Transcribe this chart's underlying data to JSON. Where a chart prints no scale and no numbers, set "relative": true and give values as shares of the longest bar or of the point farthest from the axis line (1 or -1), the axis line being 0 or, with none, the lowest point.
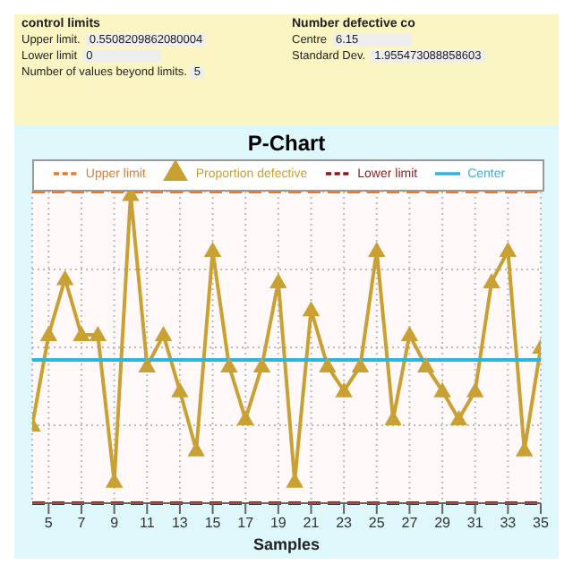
{
  "chart_data": {
    "type": "line",
    "title": "P-Chart",
    "xlabel": "Samples",
    "relative": true,
    "x": [
      4,
      5,
      6,
      7,
      8,
      9,
      10,
      11,
      12,
      13,
      14,
      15,
      16,
      17,
      18,
      19,
      20,
      21,
      22,
      23,
      24,
      25,
      26,
      27,
      28,
      29,
      30,
      31,
      32,
      33,
      34,
      35
    ],
    "xlim": [
      4,
      35
    ],
    "xticks": [
      5,
      7,
      9,
      11,
      13,
      15,
      17,
      19,
      21,
      23,
      25,
      27,
      29,
      31,
      33,
      35
    ],
    "grid": true,
    "legend": "top",
    "series": [
      {
        "name": "Upper limit",
        "color": "#e07b30",
        "values": [
          1,
          1,
          1,
          1,
          1,
          1,
          1,
          1,
          1,
          1,
          1,
          1,
          1,
          1,
          1,
          1,
          1,
          1,
          1,
          1,
          1,
          1,
          1,
          1,
          1,
          1,
          1,
          1,
          1,
          1,
          1,
          1
        ],
        "line_style": "dashed",
        "marker": "none"
      },
      {
        "name": "Proportion defective",
        "color": "#c9a032",
        "values": [
          0.25,
          0.54,
          0.72,
          0.54,
          0.54,
          0.07,
          0.99,
          0.44,
          0.54,
          0.36,
          0.17,
          0.81,
          0.44,
          0.27,
          0.44,
          0.71,
          0.07,
          0.62,
          0.44,
          0.36,
          0.44,
          0.81,
          0.27,
          0.54,
          0.44,
          0.36,
          0.27,
          0.36,
          0.71,
          0.81,
          0.17,
          0.5
        ],
        "line_style": "solid",
        "marker": "triangle"
      },
      {
        "name": "Lower limit",
        "color": "#8b1a1a",
        "values": [
          0,
          0,
          0,
          0,
          0,
          0,
          0,
          0,
          0,
          0,
          0,
          0,
          0,
          0,
          0,
          0,
          0,
          0,
          0,
          0,
          0,
          0,
          0,
          0,
          0,
          0,
          0,
          0,
          0,
          0,
          0,
          0
        ],
        "line_style": "dashed",
        "marker": "none"
      },
      {
        "name": "Center",
        "color": "#2fb4dc",
        "values": [
          0.46,
          0.46,
          0.46,
          0.46,
          0.46,
          0.46,
          0.46,
          0.46,
          0.46,
          0.46,
          0.46,
          0.46,
          0.46,
          0.46,
          0.46,
          0.46,
          0.46,
          0.46,
          0.46,
          0.46,
          0.46,
          0.46,
          0.46,
          0.46,
          0.46,
          0.46,
          0.46,
          0.46,
          0.46,
          0.46,
          0.46,
          0.46
        ],
        "line_style": "solid",
        "marker": "none"
      }
    ],
    "annotations": [
      "control limits",
      "Upper limit.",
      "0.5508209862080004",
      "Lower limit",
      "0",
      "Number of values beyond limits.",
      "5",
      "Number defective co",
      "Centre",
      "6.15",
      "Standard Dev.",
      "1.955473088858603"
    ]
  }
}
